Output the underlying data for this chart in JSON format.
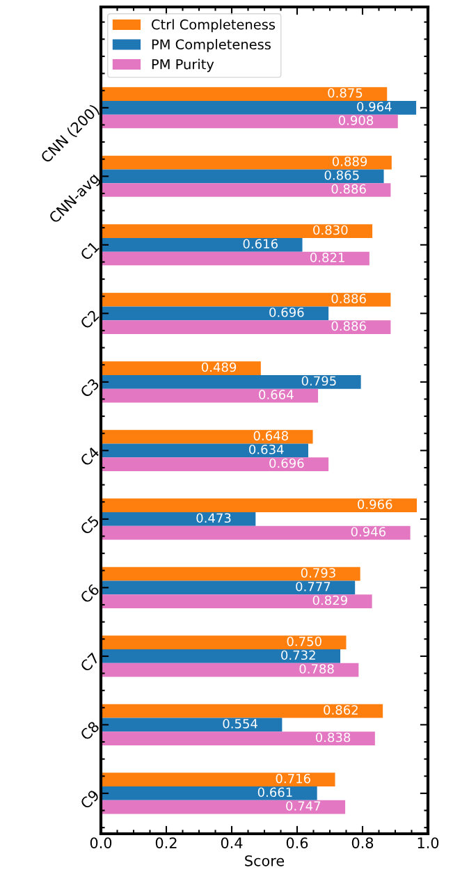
{
  "chart_data": {
    "type": "bar",
    "orientation": "horizontal",
    "xlabel": "Score",
    "categories": [
      "CNN (200)",
      "CNN-avg",
      "C1",
      "C2",
      "C3",
      "C4",
      "C5",
      "C6",
      "C7",
      "C8",
      "C9"
    ],
    "series": [
      {
        "name": "Ctrl Completeness",
        "color": "#ff7f0e",
        "values": [
          0.875,
          0.889,
          0.83,
          0.886,
          0.489,
          0.648,
          0.966,
          0.793,
          0.75,
          0.862,
          0.716
        ],
        "value_labels": [
          "0.875",
          "0.889",
          "0.830",
          "0.886",
          "0.489",
          "0.648",
          "0.966",
          "0.793",
          "0.750",
          "0.862",
          "0.716"
        ]
      },
      {
        "name": "PM Completeness",
        "color": "#1f77b4",
        "values": [
          0.964,
          0.865,
          0.616,
          0.696,
          0.795,
          0.634,
          0.473,
          0.777,
          0.732,
          0.554,
          0.661
        ],
        "value_labels": [
          "0.964",
          "0.865",
          "0.616",
          "0.696",
          "0.795",
          "0.634",
          "0.473",
          "0.777",
          "0.732",
          "0.554",
          "0.661"
        ]
      },
      {
        "name": "PM Purity",
        "color": "#e377c2",
        "values": [
          0.908,
          0.886,
          0.821,
          0.886,
          0.664,
          0.696,
          0.946,
          0.829,
          0.788,
          0.838,
          0.747
        ],
        "value_labels": [
          "0.908",
          "0.886",
          "0.821",
          "0.886",
          "0.664",
          "0.696",
          "0.946",
          "0.829",
          "0.788",
          "0.838",
          "0.747"
        ]
      }
    ],
    "xlim": [
      0,
      1
    ],
    "xticks": [
      {
        "value": 0,
        "label": "0.0"
      },
      {
        "value": 0.2,
        "label": "0.2"
      },
      {
        "value": 0.4,
        "label": "0.4"
      },
      {
        "value": 0.6,
        "label": "0.6"
      },
      {
        "value": 0.8,
        "label": "0.8"
      },
      {
        "value": 1,
        "label": "1.0"
      }
    ],
    "legend": "top left",
    "grid": false
  }
}
